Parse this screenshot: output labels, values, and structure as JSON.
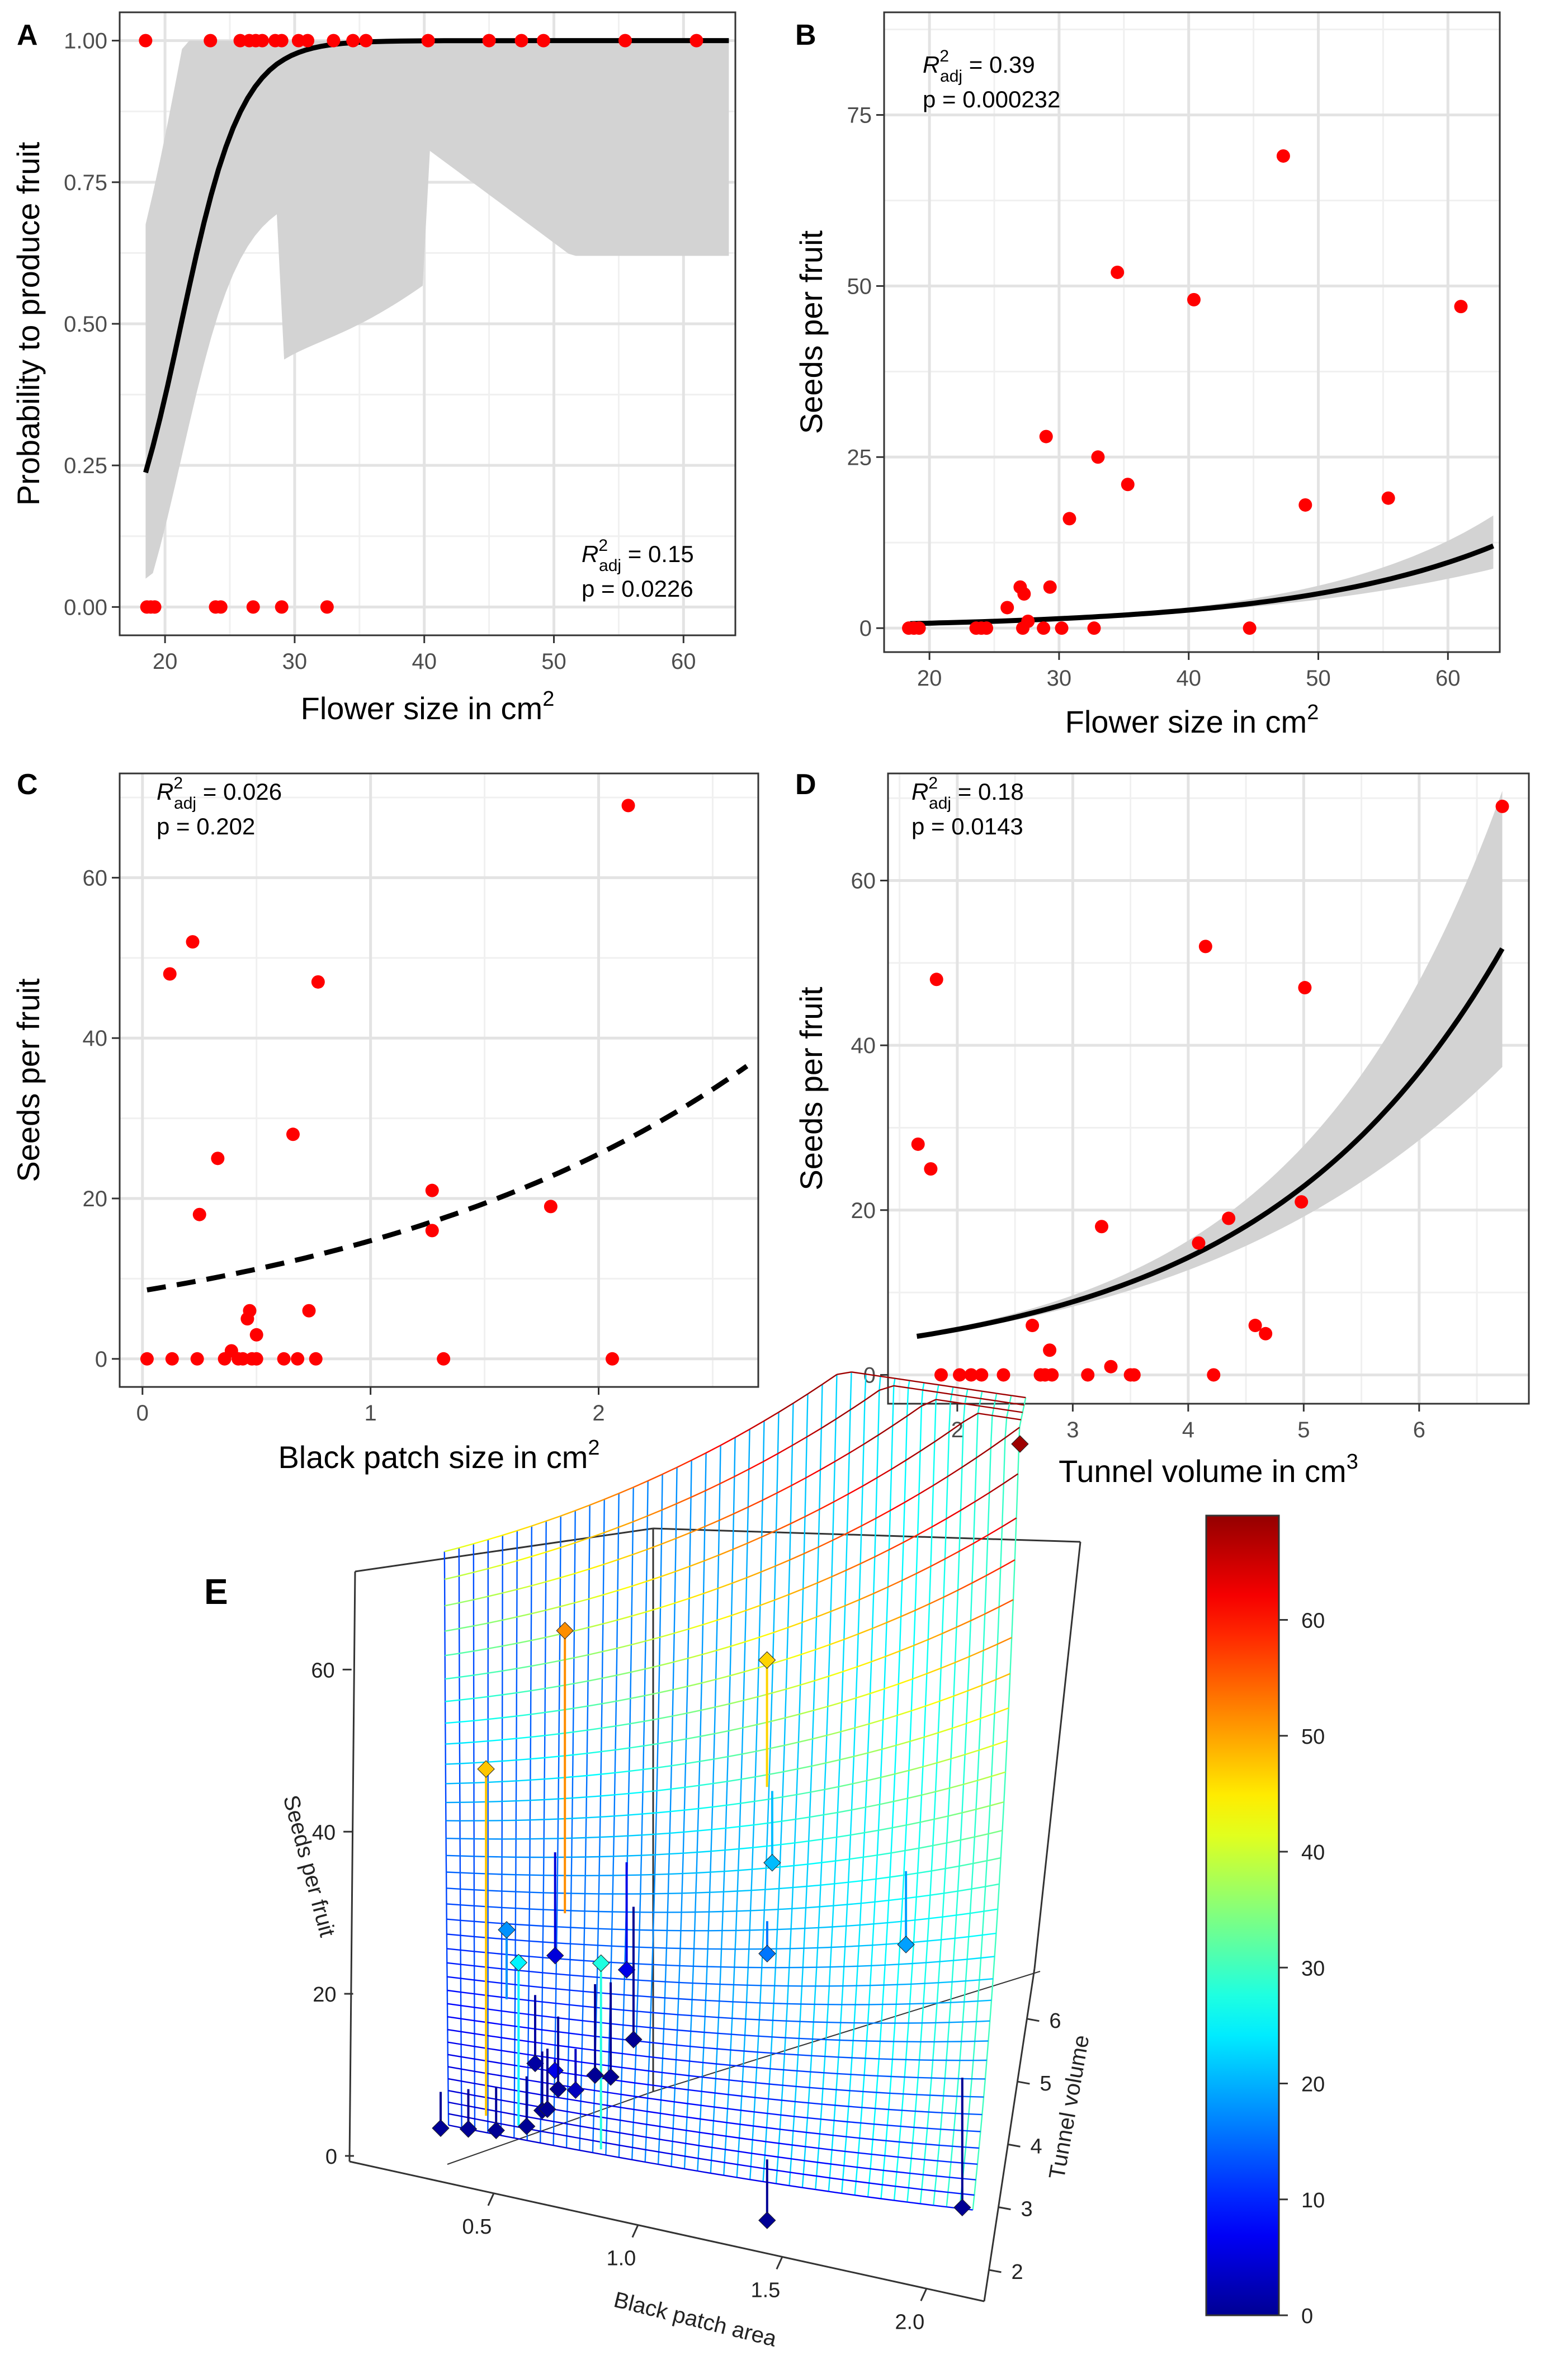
{
  "panels": [
    {
      "letter": "A",
      "type": "scatter",
      "xlabel": "Flower size in cm",
      "xlabel_sup": "2",
      "ylabel": "Probability to produce fruit",
      "xlim": [
        16.5,
        64
      ],
      "ylim": [
        -0.05,
        1.05
      ],
      "xticks": [
        20,
        30,
        40,
        50,
        60
      ],
      "yticks": [
        0,
        0.25,
        0.5,
        0.75,
        1
      ],
      "ytick_labels": [
        "0.00",
        "0.25",
        "0.50",
        "0.75",
        "1.00"
      ],
      "stats": {
        "r2_label": "R",
        "r2_sub": "adj",
        "r2_value": " = 0.15",
        "p": "p = 0.0226"
      },
      "curve": {
        "model": "logistic",
        "b0": -9.03,
        "b1": 0.425,
        "x0": 18.5,
        "x1": 63.5,
        "dashed": false,
        "band": true
      },
      "points": [
        [
          18.5,
          1
        ],
        [
          23.5,
          1
        ],
        [
          25.8,
          1
        ],
        [
          26.5,
          1
        ],
        [
          27,
          1
        ],
        [
          27.5,
          1
        ],
        [
          28.5,
          1
        ],
        [
          29,
          1
        ],
        [
          30.3,
          1
        ],
        [
          31,
          1
        ],
        [
          33,
          1
        ],
        [
          34.5,
          1
        ],
        [
          35.5,
          1
        ],
        [
          40.3,
          1
        ],
        [
          45,
          1
        ],
        [
          47.5,
          1
        ],
        [
          49.2,
          1
        ],
        [
          55.5,
          1
        ],
        [
          61,
          1
        ],
        [
          18.6,
          0
        ],
        [
          18.9,
          0
        ],
        [
          19.2,
          0
        ],
        [
          23.9,
          0
        ],
        [
          24.3,
          0
        ],
        [
          26.8,
          0
        ],
        [
          29,
          0
        ],
        [
          32.5,
          0
        ]
      ]
    },
    {
      "letter": "B",
      "type": "scatter",
      "xlabel": "Flower size in cm",
      "xlabel_sup": "2",
      "ylabel": "Seeds per fruit",
      "xlim": [
        16.5,
        64
      ],
      "ylim": [
        -3.5,
        90
      ],
      "xticks": [
        20,
        30,
        40,
        50,
        60
      ],
      "yticks": [
        0,
        25,
        50,
        75
      ],
      "ytick_labels": [
        "0",
        "25",
        "50",
        "75"
      ],
      "stats": {
        "r2_label": "R",
        "r2_sub": "adj",
        "r2_value": " = 0.39",
        "p": "p = 0.000232"
      },
      "curve": {
        "model": "exp",
        "a": 0.2,
        "b": 0.0645,
        "x0": 18.5,
        "x1": 63.5,
        "dashed": false,
        "band": true
      },
      "points": [
        [
          18.4,
          0
        ],
        [
          18.8,
          0
        ],
        [
          19.2,
          0
        ],
        [
          23.6,
          0
        ],
        [
          24,
          0
        ],
        [
          24.4,
          0
        ],
        [
          26,
          3
        ],
        [
          27,
          6
        ],
        [
          27.3,
          5
        ],
        [
          27.6,
          1
        ],
        [
          27.2,
          0
        ],
        [
          28.8,
          0
        ],
        [
          29,
          28
        ],
        [
          29.3,
          6
        ],
        [
          30.2,
          0
        ],
        [
          30.8,
          16
        ],
        [
          32.7,
          0
        ],
        [
          33,
          25
        ],
        [
          34.5,
          52
        ],
        [
          35.3,
          21
        ],
        [
          40.4,
          48
        ],
        [
          44.7,
          0
        ],
        [
          47.3,
          69
        ],
        [
          49,
          18
        ],
        [
          55.4,
          19
        ],
        [
          61,
          47
        ]
      ]
    },
    {
      "letter": "C",
      "type": "scatter",
      "xlabel": "Black patch size in cm",
      "xlabel_sup": "2",
      "ylabel": "Seeds per fruit",
      "xlim": [
        -0.1,
        2.7
      ],
      "ylim": [
        -3.5,
        73
      ],
      "xticks": [
        0,
        1,
        2
      ],
      "yticks": [
        0,
        20,
        40,
        60
      ],
      "ytick_labels": [
        "0",
        "20",
        "40",
        "60"
      ],
      "stats": {
        "r2_label": "R",
        "r2_sub": "adj",
        "r2_value": " = 0.026",
        "p": "p = 0.202"
      },
      "curve": {
        "model": "exp",
        "a": 8.5,
        "b": 0.55,
        "x0": 0.02,
        "x1": 2.65,
        "dashed": true,
        "band": false
      },
      "points": [
        [
          0.02,
          0
        ],
        [
          0.12,
          48
        ],
        [
          0.13,
          0
        ],
        [
          0.22,
          52
        ],
        [
          0.24,
          0
        ],
        [
          0.25,
          18
        ],
        [
          0.33,
          25
        ],
        [
          0.36,
          0
        ],
        [
          0.39,
          1
        ],
        [
          0.42,
          0
        ],
        [
          0.44,
          0
        ],
        [
          0.46,
          5
        ],
        [
          0.47,
          6
        ],
        [
          0.48,
          0
        ],
        [
          0.5,
          3
        ],
        [
          0.5,
          0
        ],
        [
          0.62,
          0
        ],
        [
          0.66,
          28
        ],
        [
          0.68,
          0
        ],
        [
          0.73,
          6
        ],
        [
          0.76,
          0
        ],
        [
          0.77,
          47
        ],
        [
          1.27,
          21
        ],
        [
          1.27,
          16
        ],
        [
          1.32,
          0
        ],
        [
          1.79,
          19
        ],
        [
          2.06,
          0
        ],
        [
          2.13,
          69
        ]
      ]
    },
    {
      "letter": "D",
      "type": "scatter",
      "xlabel": "Tunnel volume in cm",
      "xlabel_sup": "3",
      "ylabel": "Seeds per fruit",
      "xlim": [
        1.4,
        6.95
      ],
      "ylim": [
        -3.5,
        73
      ],
      "xticks": [
        2,
        3,
        4,
        5,
        6
      ],
      "yticks": [
        0,
        20,
        40,
        60
      ],
      "ytick_labels": [
        "0",
        "20",
        "40",
        "60"
      ],
      "stats": {
        "r2_label": "R",
        "r2_sub": "adj",
        "r2_value": " = 0.18",
        "p": "p = 0.0143"
      },
      "curve": {
        "model": "exp",
        "a": 2.14,
        "b": 0.474,
        "x0": 1.65,
        "x1": 6.72,
        "dashed": false,
        "band": true
      },
      "points": [
        [
          1.66,
          28
        ],
        [
          1.77,
          25
        ],
        [
          1.82,
          48
        ],
        [
          1.86,
          0
        ],
        [
          2.02,
          0
        ],
        [
          2.12,
          0
        ],
        [
          2.21,
          0
        ],
        [
          2.4,
          0
        ],
        [
          2.65,
          6
        ],
        [
          2.72,
          0
        ],
        [
          2.76,
          0
        ],
        [
          2.8,
          3
        ],
        [
          2.82,
          0
        ],
        [
          3.13,
          0
        ],
        [
          3.25,
          18
        ],
        [
          3.33,
          1
        ],
        [
          3.5,
          0
        ],
        [
          3.53,
          0
        ],
        [
          4.09,
          16
        ],
        [
          4.15,
          52
        ],
        [
          4.22,
          0
        ],
        [
          4.35,
          19
        ],
        [
          4.58,
          6
        ],
        [
          4.67,
          5
        ],
        [
          4.98,
          21
        ],
        [
          5.01,
          47
        ],
        [
          6.72,
          69
        ]
      ]
    }
  ],
  "panel_e": {
    "letter": "E",
    "type": "3d-scatter-surface",
    "xlabel": "Black patch area",
    "ylabel": "Tunnel volume",
    "zlabel": "Seeds per fruit",
    "xticks": [
      "0.5",
      "1.0",
      "1.5",
      "2.0"
    ],
    "yticks": [
      "2",
      "3",
      "4",
      "5",
      "6"
    ],
    "zticks": [
      "0",
      "20",
      "40",
      "60"
    ],
    "colorbar": {
      "min": 0,
      "max": 69,
      "ticks": [
        0,
        10,
        20,
        30,
        40,
        50,
        60
      ]
    },
    "points": [
      {
        "x": 2.13,
        "y": 6.72,
        "z": 69
      },
      {
        "x": 0.5,
        "y": 4.15,
        "z": 52
      },
      {
        "x": 0.2,
        "y": 1.82,
        "z": 48
      },
      {
        "x": 1.25,
        "y": 5.01,
        "z": 47
      },
      {
        "x": 0.66,
        "y": 1.66,
        "z": 28
      },
      {
        "x": 0.33,
        "y": 1.77,
        "z": 25
      },
      {
        "x": 1.27,
        "y": 4.98,
        "z": 21
      },
      {
        "x": 1.79,
        "y": 4.35,
        "z": 19
      },
      {
        "x": 0.28,
        "y": 3.25,
        "z": 18
      },
      {
        "x": 1.27,
        "y": 4.09,
        "z": 16
      },
      {
        "x": 0.47,
        "y": 2.65,
        "z": 6
      },
      {
        "x": 0.73,
        "y": 4.58,
        "z": 6
      },
      {
        "x": 0.46,
        "y": 4.67,
        "z": 5
      },
      {
        "x": 0.55,
        "y": 2.8,
        "z": 3
      },
      {
        "x": 0.39,
        "y": 3.33,
        "z": 1
      },
      {
        "x": 0.02,
        "y": 2.02,
        "z": 0
      },
      {
        "x": 0.13,
        "y": 2.12,
        "z": 0
      },
      {
        "x": 0.24,
        "y": 2.21,
        "z": 0
      },
      {
        "x": 0.36,
        "y": 2.4,
        "z": 0
      },
      {
        "x": 0.42,
        "y": 2.72,
        "z": 0
      },
      {
        "x": 0.44,
        "y": 2.76,
        "z": 0
      },
      {
        "x": 0.48,
        "y": 3.13,
        "z": 0
      },
      {
        "x": 0.62,
        "y": 3.5,
        "z": 0
      },
      {
        "x": 0.68,
        "y": 3.53,
        "z": 0
      },
      {
        "x": 0.76,
        "y": 4.22,
        "z": 0
      },
      {
        "x": 1.32,
        "y": 1.86,
        "z": 0
      },
      {
        "x": 2.06,
        "y": 2.82,
        "z": 0
      }
    ]
  }
}
